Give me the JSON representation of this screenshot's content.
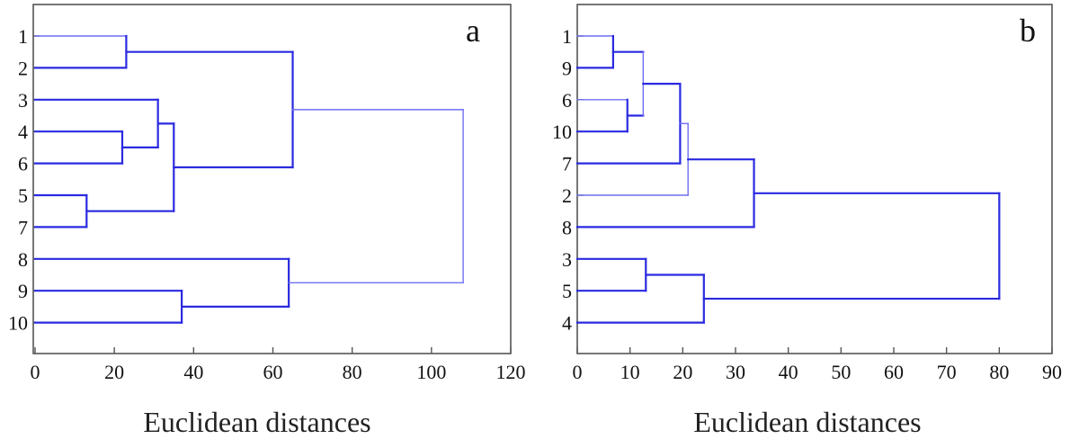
{
  "colors": {
    "branch": "#2a2ae0",
    "branch_light": "#6f6ff2",
    "axis": "#555555"
  },
  "chart_data": [
    {
      "type": "dendrogram",
      "panel_label": "a",
      "xlabel": "Euclidean distances",
      "xlim": [
        0,
        120
      ],
      "xticks": [
        0,
        20,
        40,
        60,
        80,
        100,
        120
      ],
      "leaves": [
        "1",
        "2",
        "3",
        "4",
        "6",
        "5",
        "7",
        "8",
        "9",
        "10"
      ],
      "merges": [
        {
          "left": "5",
          "right": "7",
          "height": 13,
          "style": "dark"
        },
        {
          "left": "9",
          "right": "10",
          "height": 37,
          "style": "dark"
        },
        {
          "left": "4",
          "right": "6",
          "height": 22,
          "style": "dark"
        },
        {
          "left": "1",
          "right": "2",
          "height": 23,
          "style": "dark",
          "top_branch": "light"
        },
        {
          "left": "3",
          "right": "4+6",
          "height": 31,
          "style": "dark"
        },
        {
          "left": "3+4+6",
          "right": "5+7",
          "height": 35,
          "style": "dark"
        },
        {
          "left": "8",
          "right": "9+10",
          "height": 64,
          "style": "dark"
        },
        {
          "left": "1+2",
          "right": "3+4+6+5+7",
          "height": 65,
          "style": "dark"
        },
        {
          "left": "1+2+3+4+6+5+7",
          "right": "8+9+10",
          "height": 108,
          "style": "light"
        }
      ]
    },
    {
      "type": "dendrogram",
      "panel_label": "b",
      "xlabel": "Euclidean distances",
      "xlim": [
        0,
        90
      ],
      "xticks": [
        0,
        10,
        20,
        30,
        40,
        50,
        60,
        70,
        80,
        90
      ],
      "leaves": [
        "1",
        "9",
        "6",
        "10",
        "7",
        "2",
        "8",
        "3",
        "5",
        "4"
      ],
      "merges": [
        {
          "left": "1",
          "right": "9",
          "height": 6.8,
          "style": "dark",
          "top_branch": "light"
        },
        {
          "left": "6",
          "right": "10",
          "height": 9.5,
          "style": "dark",
          "top_branch": "light"
        },
        {
          "left": "1+9",
          "right": "6+10",
          "height": 12.5,
          "style": "mixed"
        },
        {
          "left": "1+9+6+10",
          "right": "7",
          "height": 19.5,
          "style": "dark"
        },
        {
          "left": "3",
          "right": "5",
          "height": 13,
          "style": "dark"
        },
        {
          "left": "1+9+6+10+7",
          "right": "2",
          "height": 21,
          "style": "light"
        },
        {
          "left": "3+5",
          "right": "4",
          "height": 24,
          "style": "dark"
        },
        {
          "left": "1+9+6+10+7+2",
          "right": "8",
          "height": 33.5,
          "style": "dark"
        },
        {
          "left": "1+9+6+10+7+2+8",
          "right": "3+5+4",
          "height": 80,
          "style": "dark"
        }
      ]
    }
  ]
}
